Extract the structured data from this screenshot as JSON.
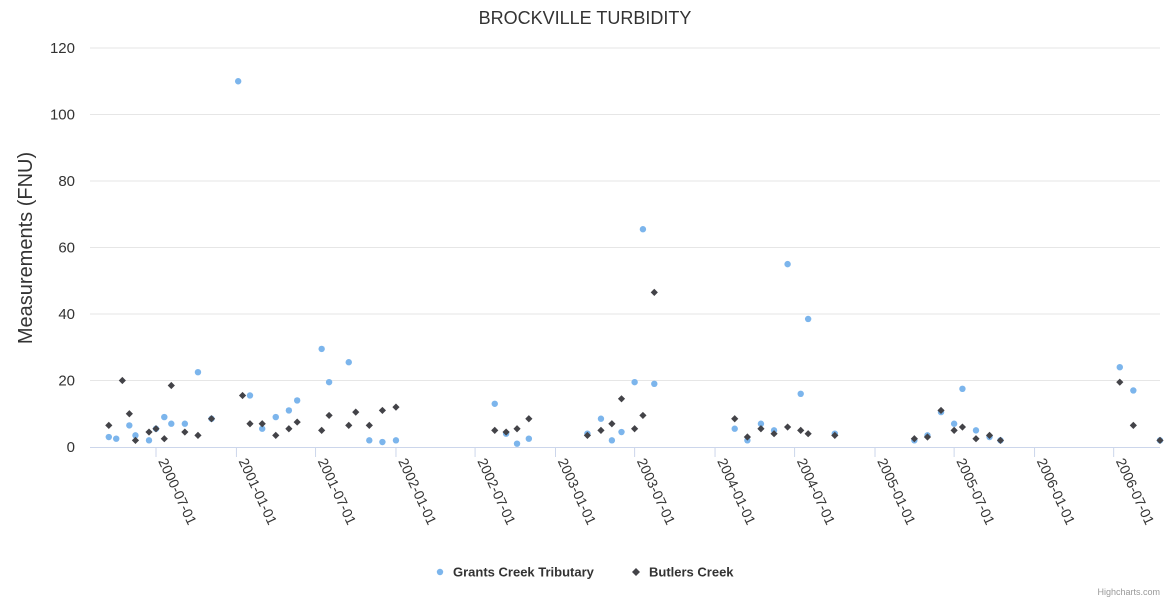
{
  "chart_data": {
    "type": "scatter",
    "title": "BROCKVILLE TURBIDITY",
    "xlabel": "",
    "ylabel": "Measurements (FNU)",
    "ylim": [
      0,
      120
    ],
    "yticks": [
      0,
      20,
      40,
      60,
      80,
      100,
      120
    ],
    "xlim": [
      "2000-02-01",
      "2006-10-15"
    ],
    "xticks": [
      "2000-07-01",
      "2001-01-01",
      "2001-07-01",
      "2002-01-01",
      "2002-07-01",
      "2003-01-01",
      "2003-07-01",
      "2004-01-01",
      "2004-07-01",
      "2005-01-01",
      "2005-07-01",
      "2006-01-01",
      "2006-07-01"
    ],
    "grid": true,
    "legend_position": "bottom-center",
    "series": [
      {
        "name": "Grants Creek Tributary",
        "color": "#7cb5ec",
        "marker": "circle",
        "points": [
          [
            "2000-03-15",
            3
          ],
          [
            "2000-04-01",
            2.5
          ],
          [
            "2000-05-01",
            6.5
          ],
          [
            "2000-05-15",
            3.5
          ],
          [
            "2000-06-15",
            2
          ],
          [
            "2000-07-01",
            5.5
          ],
          [
            "2000-07-20",
            9
          ],
          [
            "2000-08-05",
            7
          ],
          [
            "2000-09-05",
            7
          ],
          [
            "2000-10-05",
            22.5
          ],
          [
            "2000-11-05",
            8.5
          ],
          [
            "2001-01-05",
            110
          ],
          [
            "2001-02-01",
            15.5
          ],
          [
            "2001-03-01",
            5.5
          ],
          [
            "2001-04-01",
            9
          ],
          [
            "2001-05-01",
            11
          ],
          [
            "2001-05-20",
            14
          ],
          [
            "2001-07-15",
            29.5
          ],
          [
            "2001-08-01",
            19.5
          ],
          [
            "2001-09-15",
            25.5
          ],
          [
            "2001-11-01",
            2
          ],
          [
            "2001-12-01",
            1.5
          ],
          [
            "2002-01-01",
            2
          ],
          [
            "2002-08-15",
            13
          ],
          [
            "2002-09-10",
            4
          ],
          [
            "2002-10-05",
            1
          ],
          [
            "2002-11-01",
            2.5
          ],
          [
            "2003-03-15",
            4
          ],
          [
            "2003-04-15",
            8.5
          ],
          [
            "2003-05-10",
            2
          ],
          [
            "2003-06-01",
            4.5
          ],
          [
            "2003-07-01",
            19.5
          ],
          [
            "2003-07-20",
            65.5
          ],
          [
            "2003-08-15",
            19
          ],
          [
            "2004-02-15",
            5.5
          ],
          [
            "2004-03-15",
            2
          ],
          [
            "2004-04-15",
            7
          ],
          [
            "2004-05-15",
            5
          ],
          [
            "2004-06-15",
            55
          ],
          [
            "2004-07-15",
            16
          ],
          [
            "2004-08-01",
            38.5
          ],
          [
            "2004-10-01",
            4
          ],
          [
            "2005-04-01",
            2
          ],
          [
            "2005-05-01",
            3.5
          ],
          [
            "2005-06-01",
            10.5
          ],
          [
            "2005-07-01",
            7
          ],
          [
            "2005-07-20",
            17.5
          ],
          [
            "2005-08-20",
            5
          ],
          [
            "2005-09-20",
            3
          ],
          [
            "2005-10-15",
            2
          ],
          [
            "2006-07-15",
            24
          ],
          [
            "2006-08-15",
            17
          ],
          [
            "2006-10-15",
            2
          ]
        ]
      },
      {
        "name": "Butlers Creek",
        "color": "#434348",
        "marker": "diamond",
        "points": [
          [
            "2000-03-15",
            6.5
          ],
          [
            "2000-04-15",
            20
          ],
          [
            "2000-05-01",
            10
          ],
          [
            "2000-05-15",
            2
          ],
          [
            "2000-06-15",
            4.5
          ],
          [
            "2000-07-01",
            5.5
          ],
          [
            "2000-07-20",
            2.5
          ],
          [
            "2000-08-05",
            18.5
          ],
          [
            "2000-09-05",
            4.5
          ],
          [
            "2000-10-05",
            3.5
          ],
          [
            "2000-11-05",
            8.5
          ],
          [
            "2001-01-15",
            15.5
          ],
          [
            "2001-02-01",
            7
          ],
          [
            "2001-03-01",
            7
          ],
          [
            "2001-04-01",
            3.5
          ],
          [
            "2001-05-01",
            5.5
          ],
          [
            "2001-05-20",
            7.5
          ],
          [
            "2001-07-15",
            5
          ],
          [
            "2001-08-01",
            9.5
          ],
          [
            "2001-09-15",
            6.5
          ],
          [
            "2001-10-01",
            10.5
          ],
          [
            "2001-11-01",
            6.5
          ],
          [
            "2001-12-01",
            11
          ],
          [
            "2002-01-01",
            12
          ],
          [
            "2002-08-15",
            5
          ],
          [
            "2002-09-10",
            4.5
          ],
          [
            "2002-10-05",
            5.5
          ],
          [
            "2002-11-01",
            8.5
          ],
          [
            "2003-03-15",
            3.5
          ],
          [
            "2003-04-15",
            5
          ],
          [
            "2003-05-10",
            7
          ],
          [
            "2003-06-01",
            14.5
          ],
          [
            "2003-07-01",
            5.5
          ],
          [
            "2003-07-20",
            9.5
          ],
          [
            "2003-08-15",
            46.5
          ],
          [
            "2004-02-15",
            8.5
          ],
          [
            "2004-03-15",
            3
          ],
          [
            "2004-04-15",
            5.5
          ],
          [
            "2004-05-15",
            4
          ],
          [
            "2004-06-15",
            6
          ],
          [
            "2004-07-15",
            5
          ],
          [
            "2004-08-01",
            4
          ],
          [
            "2004-10-01",
            3.5
          ],
          [
            "2005-04-01",
            2.5
          ],
          [
            "2005-05-01",
            3
          ],
          [
            "2005-06-01",
            11
          ],
          [
            "2005-07-01",
            5
          ],
          [
            "2005-07-20",
            6
          ],
          [
            "2005-08-20",
            2.5
          ],
          [
            "2005-09-20",
            3.5
          ],
          [
            "2005-10-15",
            2
          ],
          [
            "2006-07-15",
            19.5
          ],
          [
            "2006-08-15",
            6.5
          ],
          [
            "2006-10-15",
            2
          ]
        ]
      }
    ],
    "credits": "Highcharts.com"
  }
}
